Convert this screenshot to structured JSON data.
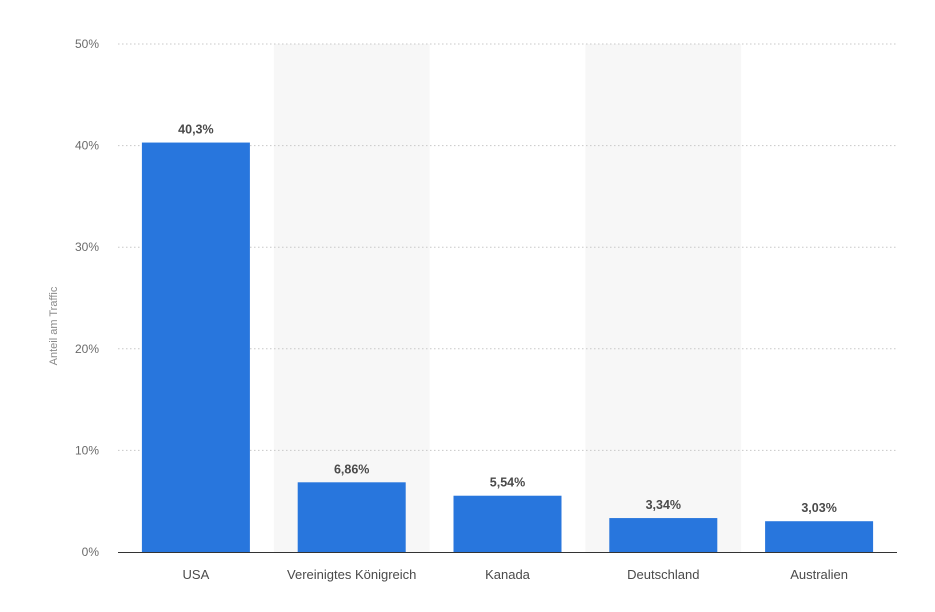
{
  "chart_data": {
    "type": "bar",
    "ylabel": "Anteil am Traffic",
    "xlabel": "",
    "ylim": [
      0,
      50
    ],
    "y_ticks": [
      0,
      10,
      20,
      30,
      40,
      50
    ],
    "y_tick_labels": [
      "0%",
      "10%",
      "20%",
      "30%",
      "40%",
      "50%"
    ],
    "categories": [
      "USA",
      "Vereinigtes Königreich",
      "Kanada",
      "Deutschland",
      "Australien"
    ],
    "values": [
      40.3,
      6.86,
      5.54,
      3.34,
      3.03
    ],
    "value_labels": [
      "40,3%",
      "6,86%",
      "5,54%",
      "3,34%",
      "3,03%"
    ],
    "grid": true,
    "legend": "none",
    "colors": {
      "bar": "#2876dd",
      "alt_band": "#f7f7f7",
      "gridline": "#c8c8c8",
      "axis": "#333333"
    }
  }
}
